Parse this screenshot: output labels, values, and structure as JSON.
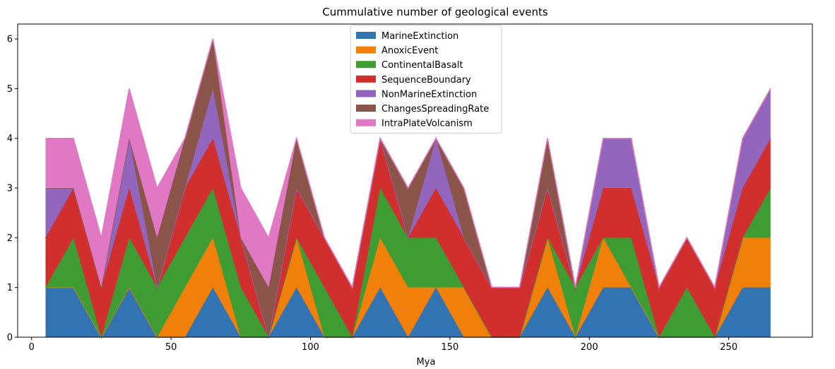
{
  "chart_data": {
    "type": "area",
    "stacked": true,
    "title": "Cummulative number of geological events",
    "xlabel": "Mya",
    "ylabel": "",
    "xlim": [
      -5,
      280
    ],
    "ylim": [
      0,
      6.3
    ],
    "x_ticks": [
      0,
      50,
      100,
      150,
      200,
      250
    ],
    "y_ticks": [
      0,
      1,
      2,
      3,
      4,
      5,
      6
    ],
    "legend_position": "top-center",
    "x": [
      5,
      15,
      25,
      35,
      45,
      55,
      65,
      75,
      85,
      95,
      105,
      115,
      125,
      135,
      145,
      155,
      165,
      175,
      185,
      195,
      205,
      215,
      225,
      235,
      245,
      255,
      265
    ],
    "series": [
      {
        "name": "MarineExtinction",
        "color": "#3274b2",
        "values": [
          1,
          1,
          0,
          1,
          0,
          0,
          1,
          0,
          0,
          1,
          0,
          0,
          1,
          0,
          1,
          0,
          0,
          0,
          1,
          0,
          1,
          1,
          0,
          0,
          0,
          1,
          1
        ]
      },
      {
        "name": "AnoxicEvent",
        "color": "#f08009",
        "values": [
          0,
          0,
          0,
          0,
          0,
          1,
          1,
          0,
          0,
          1,
          0,
          0,
          1,
          1,
          0,
          1,
          0,
          0,
          1,
          0,
          1,
          0,
          0,
          0,
          0,
          1,
          1
        ]
      },
      {
        "name": "ContinentalBasalt",
        "color": "#3e9c33",
        "values": [
          0,
          1,
          0,
          1,
          1,
          1,
          1,
          1,
          0,
          0,
          1,
          0,
          1,
          1,
          1,
          0,
          0,
          0,
          0,
          1,
          0,
          1,
          0,
          1,
          0,
          0,
          1
        ]
      },
      {
        "name": "SequenceBoundary",
        "color": "#d12f2e",
        "values": [
          1,
          1,
          1,
          1,
          0,
          1,
          1,
          1,
          0,
          1,
          1,
          1,
          1,
          0,
          1,
          1,
          1,
          1,
          1,
          0,
          1,
          1,
          1,
          1,
          1,
          1,
          1
        ]
      },
      {
        "name": "NonMarineExtinction",
        "color": "#9366bd",
        "values": [
          1,
          0,
          0,
          1,
          0,
          0,
          1,
          0,
          0,
          0,
          0,
          0,
          0,
          0,
          1,
          0,
          0,
          0,
          0,
          0,
          1,
          1,
          0,
          0,
          0,
          1,
          1
        ]
      },
      {
        "name": "ChangesSpreadingRate",
        "color": "#8b5449",
        "values": [
          0,
          0,
          0,
          0,
          1,
          1,
          1,
          0,
          1,
          1,
          0,
          0,
          0,
          1,
          0,
          1,
          0,
          0,
          1,
          0,
          0,
          0,
          0,
          0,
          0,
          0,
          0
        ]
      },
      {
        "name": "IntraPlateVolcanism",
        "color": "#e178c3",
        "values": [
          1,
          1,
          1,
          1,
          1,
          0,
          0,
          1,
          1,
          0,
          0,
          0,
          0,
          0,
          0,
          0,
          0,
          0,
          0,
          0,
          0,
          0,
          0,
          0,
          0,
          0,
          0
        ]
      }
    ]
  }
}
